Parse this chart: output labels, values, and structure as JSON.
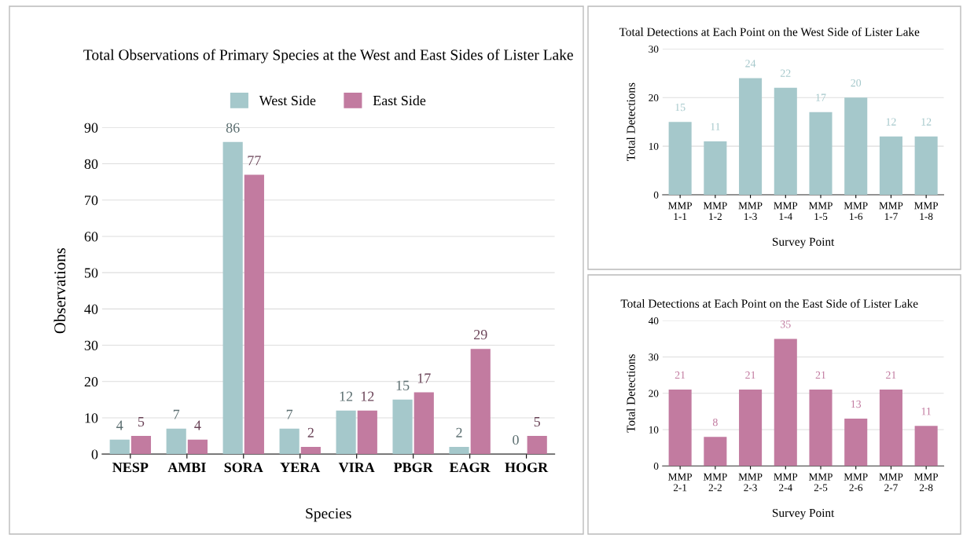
{
  "chart_data": [
    {
      "type": "bar",
      "title": "Total Observations of Primary Species at the West and East Sides of Lister Lake",
      "xlabel": "Species",
      "ylabel": "Observations",
      "categories": [
        "NESP",
        "AMBI",
        "SORA",
        "YERA",
        "VIRA",
        "PBGR",
        "EAGR",
        "HOGR"
      ],
      "series": [
        {
          "name": "West Side",
          "color": "#a5c8cb",
          "values": [
            4,
            7,
            86,
            7,
            12,
            15,
            2,
            0
          ]
        },
        {
          "name": "East Side",
          "color": "#c27ba0",
          "values": [
            5,
            4,
            77,
            2,
            12,
            17,
            29,
            5
          ]
        }
      ],
      "ylim": [
        0,
        90
      ],
      "yticks": [
        0,
        10,
        20,
        30,
        40,
        50,
        60,
        70,
        80,
        90
      ],
      "grid": "y",
      "legend": "top",
      "data_labels": true
    },
    {
      "type": "bar",
      "title": "Total Detections at Each Point on the West Side of Lister Lake",
      "xlabel": "Survey Point",
      "ylabel": "Total Detections",
      "categories": [
        "MMP\n1-1",
        "MMP\n1-2",
        "MMP\n1-3",
        "MMP\n1-4",
        "MMP\n1-5",
        "MMP\n1-6",
        "MMP\n1-7",
        "MMP\n1-8"
      ],
      "series": [
        {
          "color": "#a5c8cb",
          "values": [
            15,
            11,
            24,
            22,
            17,
            20,
            12,
            12
          ]
        }
      ],
      "ylim": [
        0,
        30
      ],
      "yticks": [
        0,
        10,
        20,
        30
      ],
      "grid": "y",
      "data_labels": true
    },
    {
      "type": "bar",
      "title": "Total Detections at Each Point on the East Side of Lister Lake",
      "xlabel": "Survey Point",
      "ylabel": "Total Detections",
      "categories": [
        "MMP\n2-1",
        "MMP\n2-2",
        "MMP\n2-3",
        "MMP\n2-4",
        "MMP\n2-5",
        "MMP\n2-6",
        "MMP\n2-7",
        "MMP\n2-8"
      ],
      "series": [
        {
          "color": "#c27ba0",
          "values": [
            21,
            8,
            21,
            35,
            21,
            13,
            21,
            11
          ]
        }
      ],
      "ylim": [
        0,
        40
      ],
      "yticks": [
        0,
        10,
        20,
        30,
        40
      ],
      "grid": "y",
      "data_labels": true
    }
  ]
}
